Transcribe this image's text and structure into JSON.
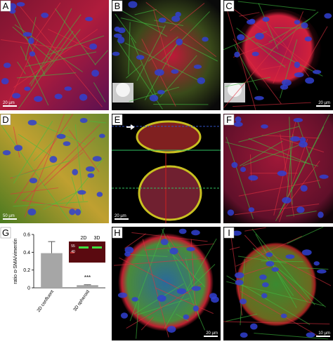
{
  "panels": [
    {
      "label": "A",
      "scale_bar": "20 µm"
    },
    {
      "label": "B"
    },
    {
      "label": "C",
      "scale_bar": "20 µm"
    },
    {
      "label": "D",
      "scale_bar": "50 µm"
    },
    {
      "label": "E",
      "scale_bar": "20 µm"
    },
    {
      "label": "F"
    },
    {
      "label": "G"
    },
    {
      "label": "H",
      "scale_bar": "20 µm"
    },
    {
      "label": "I",
      "scale_bar": "10 µm"
    }
  ],
  "chart_data": {
    "type": "bar",
    "y_label": "ratio α-SMA/vimentin",
    "categories": [
      "2D confluent",
      "3D spheroid"
    ],
    "values": [
      0.39,
      0.03
    ],
    "errors": [
      0.13,
      0.005
    ],
    "color": "#a6a6a6",
    "ylim": [
      0,
      0.6
    ],
    "yticks": [
      0,
      0.2,
      0.4,
      0.6
    ],
    "annotation": "***",
    "inset_lanes": [
      "2D",
      "3D"
    ],
    "inset_markers": [
      "55",
      "40"
    ]
  }
}
